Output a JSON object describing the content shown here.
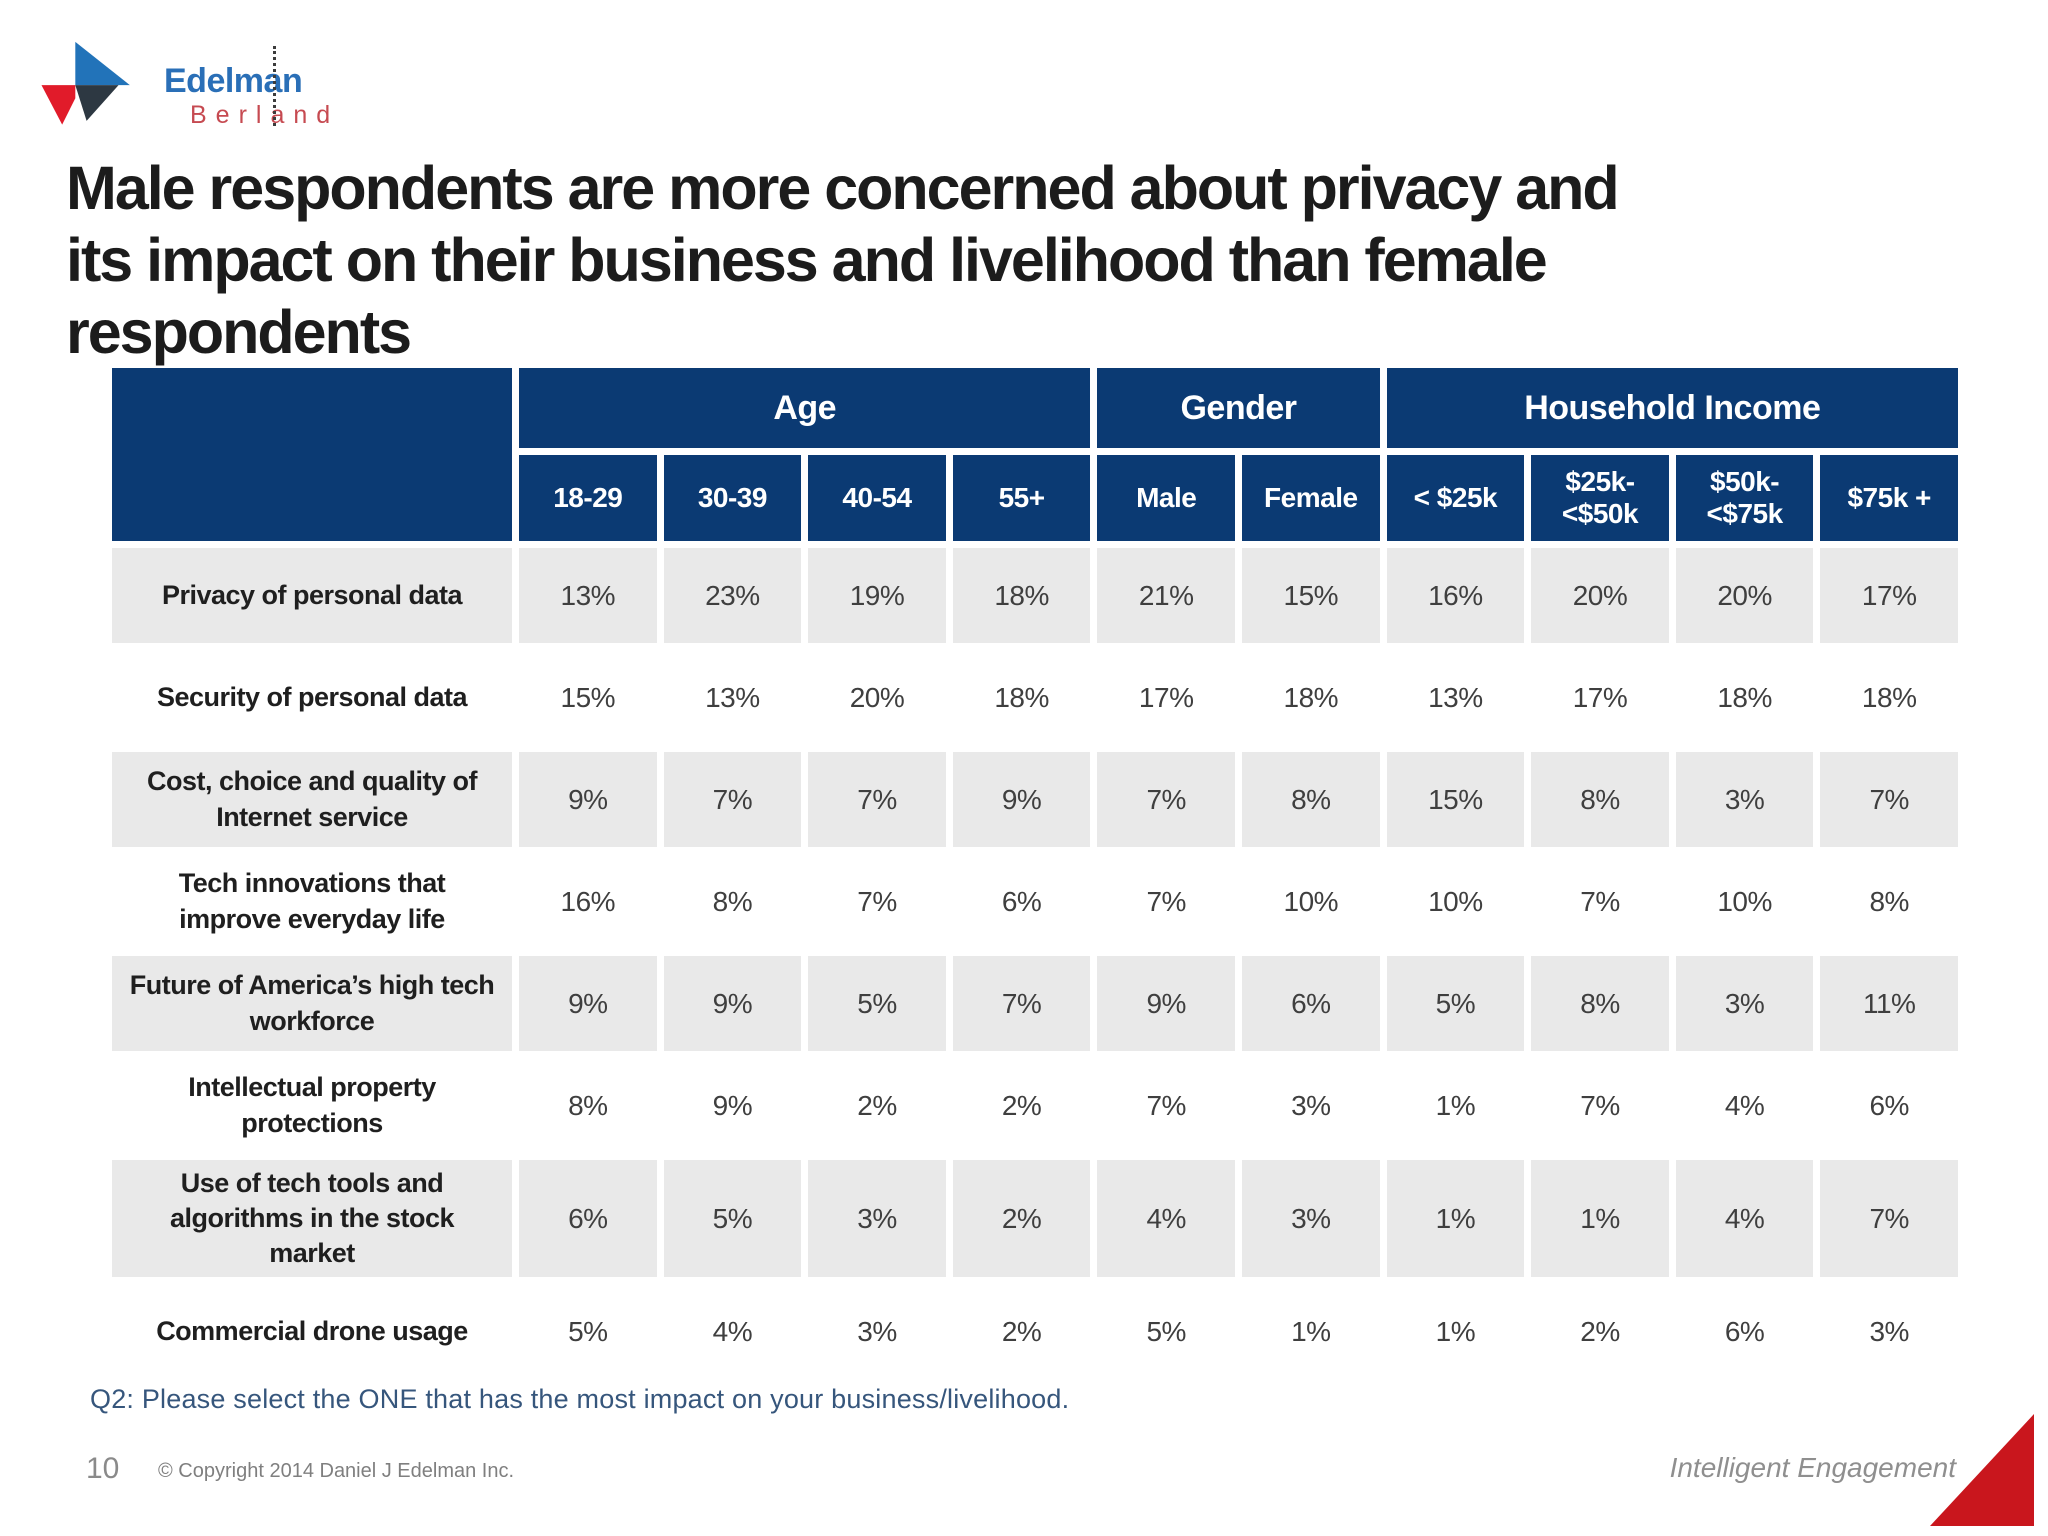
{
  "logo": {
    "line1": "Edelman",
    "line2": "Berland"
  },
  "title": "Male respondents are more concerned about privacy and its impact on their business and livelihood than female respondents",
  "table": {
    "groups": [
      {
        "label": "Age",
        "span": 4
      },
      {
        "label": "Gender",
        "span": 2
      },
      {
        "label": "Household Income",
        "span": 4
      }
    ],
    "columns": [
      "18-29",
      "30-39",
      "40-54",
      "55+",
      "Male",
      "Female",
      "< $25k",
      "$25k-\n<$50k",
      "$50k-\n<$75k",
      "$75k +"
    ],
    "rows": [
      {
        "label": "Privacy of personal data",
        "values": [
          "13%",
          "23%",
          "19%",
          "18%",
          "21%",
          "15%",
          "16%",
          "20%",
          "20%",
          "17%"
        ]
      },
      {
        "label": "Security of personal data",
        "values": [
          "15%",
          "13%",
          "20%",
          "18%",
          "17%",
          "18%",
          "13%",
          "17%",
          "18%",
          "18%"
        ]
      },
      {
        "label": "Cost, choice and quality of Internet service",
        "values": [
          "9%",
          "7%",
          "7%",
          "9%",
          "7%",
          "8%",
          "15%",
          "8%",
          "3%",
          "7%"
        ]
      },
      {
        "label": "Tech innovations that improve everyday life",
        "values": [
          "16%",
          "8%",
          "7%",
          "6%",
          "7%",
          "10%",
          "10%",
          "7%",
          "10%",
          "8%"
        ]
      },
      {
        "label": "Future of America’s high tech workforce",
        "values": [
          "9%",
          "9%",
          "5%",
          "7%",
          "9%",
          "6%",
          "5%",
          "8%",
          "3%",
          "11%"
        ]
      },
      {
        "label": "Intellectual property protections",
        "values": [
          "8%",
          "9%",
          "2%",
          "2%",
          "7%",
          "3%",
          "1%",
          "7%",
          "4%",
          "6%"
        ]
      },
      {
        "label": "Use of tech tools and algorithms in the stock market",
        "values": [
          "6%",
          "5%",
          "3%",
          "2%",
          "4%",
          "3%",
          "1%",
          "1%",
          "4%",
          "7%"
        ]
      },
      {
        "label": "Commercial drone usage",
        "values": [
          "5%",
          "4%",
          "3%",
          "2%",
          "5%",
          "1%",
          "1%",
          "2%",
          "6%",
          "3%"
        ]
      }
    ]
  },
  "note": "Q2: Please select the ONE that has the most impact on your business/livelihood.",
  "footer": {
    "page_number": "10",
    "copyright": "© Copyright 2014 Daniel J Edelman Inc.",
    "tagline": "Intelligent Engagement"
  },
  "colors": {
    "header_navy": "#0b3a73",
    "row_gray": "#e9e9e9",
    "logo_blue": "#2a6fb7",
    "logo_red": "#e11b2a",
    "accent_red": "#c9161d",
    "note_blue": "#36567c"
  }
}
